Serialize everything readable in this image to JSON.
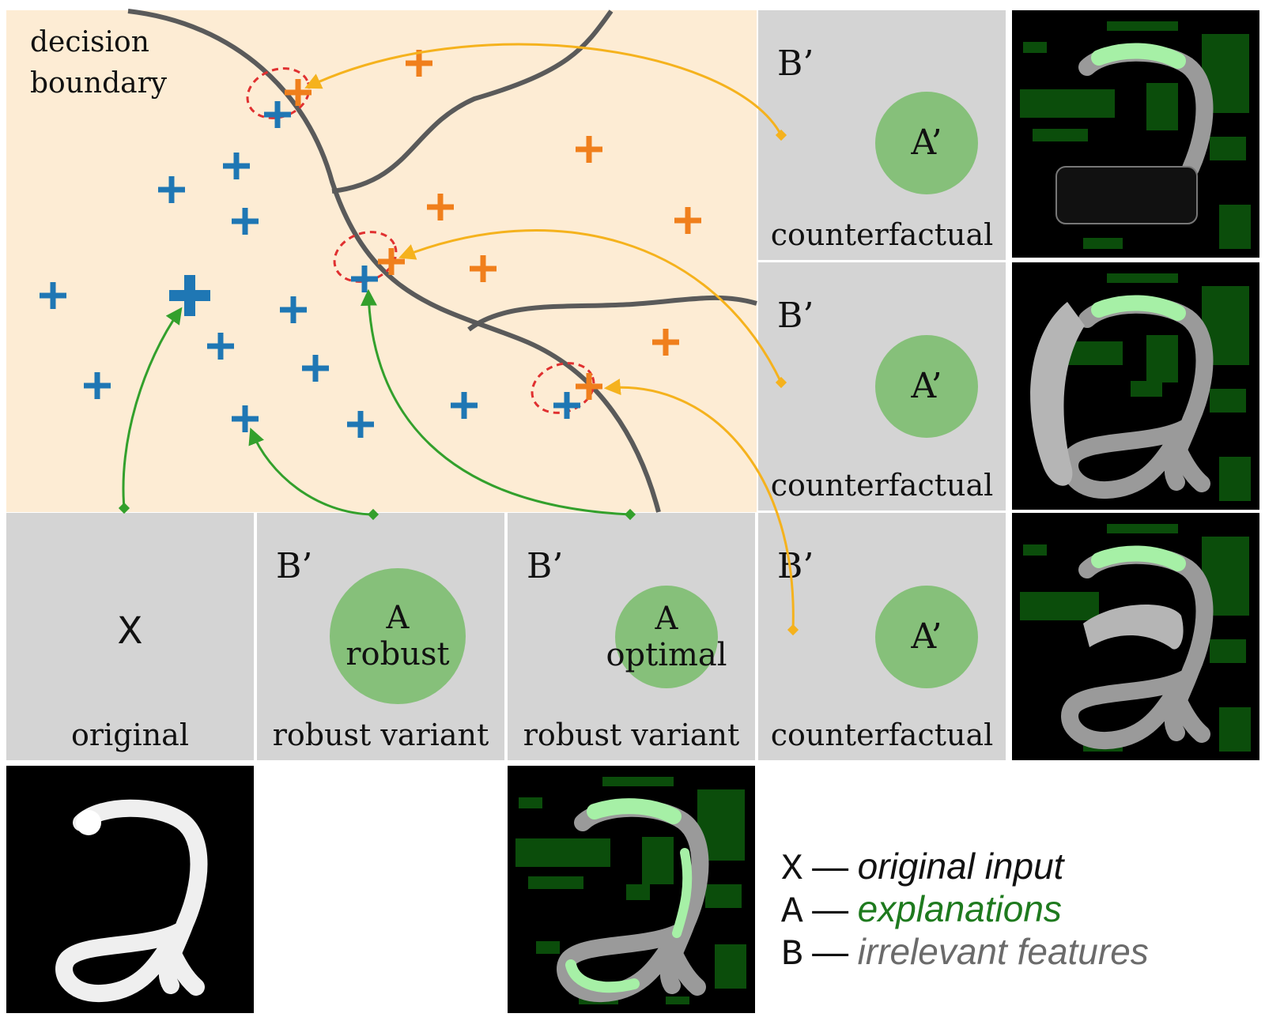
{
  "scatter_panel": {
    "boundary_label_line1": "decision",
    "boundary_label_line2": "boundary",
    "colors": {
      "background": "#fdecd4",
      "class_a": "#1f77b4",
      "class_b": "#f07f1c",
      "boundary": "#5a5a5a",
      "green_arrow": "#33a02c",
      "orange_arrow": "#f5b21d",
      "highlight": "#e03030"
    }
  },
  "panels": {
    "original": {
      "symbol": "X",
      "caption": "original"
    },
    "robust": {
      "b_label": "B’",
      "circle_line1": "A",
      "circle_line2": "robust",
      "caption": "robust variant"
    },
    "optimal": {
      "b_label": "B’",
      "circle_line1": "A",
      "circle_line2": "optimal",
      "caption": "robust variant"
    },
    "counterfactuals": [
      {
        "b_label": "B’",
        "circle_label": "A’",
        "caption": "counterfactual"
      },
      {
        "b_label": "B’",
        "circle_label": "A’",
        "caption": "counterfactual"
      },
      {
        "b_label": "B’",
        "circle_label": "A’",
        "caption": "counterfactual"
      }
    ]
  },
  "legend": {
    "x_key": "X",
    "x_desc": "original input",
    "a_key": "A",
    "a_desc": "explanations",
    "b_key": "B",
    "b_desc": "irrelevant features",
    "dash": "—",
    "colors": {
      "x_desc": "#111111",
      "a_desc": "#1e7a1e",
      "b_desc": "#6b6b6b"
    }
  }
}
